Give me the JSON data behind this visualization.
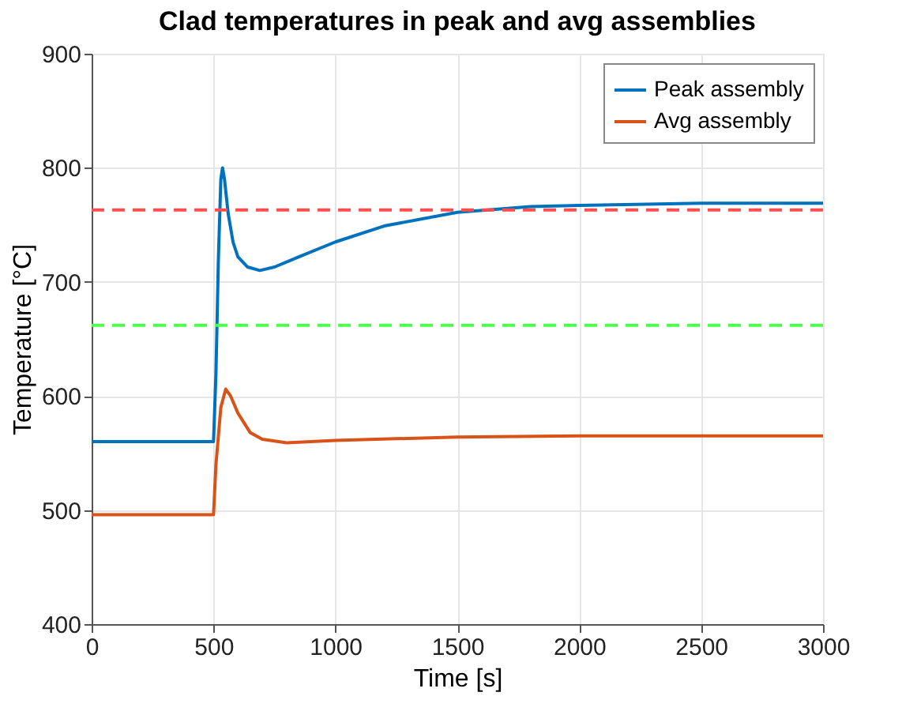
{
  "chart_data": {
    "type": "line",
    "title": "Clad temperatures in peak and avg assemblies",
    "xlabel": "Time [s]",
    "ylabel": "Temperature [°C]",
    "xlim": [
      0,
      3000
    ],
    "xticks": [
      0,
      500,
      1000,
      1500,
      2000,
      2500,
      3000
    ],
    "ylim": [
      400,
      900
    ],
    "yticks": [
      400,
      500,
      600,
      700,
      800,
      900
    ],
    "grid": true,
    "legend": "top right",
    "line_style": "solid",
    "marker": "none",
    "series": [
      {
        "name": "Peak assembly",
        "color": "#0072bd",
        "x": [
          0,
          500,
          510,
          520,
          530,
          537,
          545,
          560,
          580,
          600,
          640,
          690,
          750,
          850,
          1000,
          1200,
          1500,
          1800,
          2000,
          2500,
          3000
        ],
        "values": [
          560,
          560,
          620,
          720,
          790,
          800,
          790,
          760,
          735,
          722,
          713,
          710,
          713,
          722,
          735,
          749,
          761,
          766,
          767,
          769,
          769
        ]
      },
      {
        "name": "Avg assembly",
        "color": "#d95319",
        "x": [
          0,
          500,
          510,
          530,
          550,
          570,
          600,
          650,
          700,
          800,
          1000,
          1500,
          2000,
          3000
        ],
        "values": [
          496,
          496,
          540,
          590,
          606,
          600,
          585,
          568,
          562,
          559,
          561,
          564,
          565,
          565
        ]
      }
    ],
    "ref_lines": [
      {
        "axis": "y",
        "value": 763,
        "color": "#ff4d4d",
        "line_style": "dashed"
      },
      {
        "axis": "y",
        "value": 662,
        "color": "#4dff4d",
        "line_style": "dashed"
      }
    ]
  }
}
